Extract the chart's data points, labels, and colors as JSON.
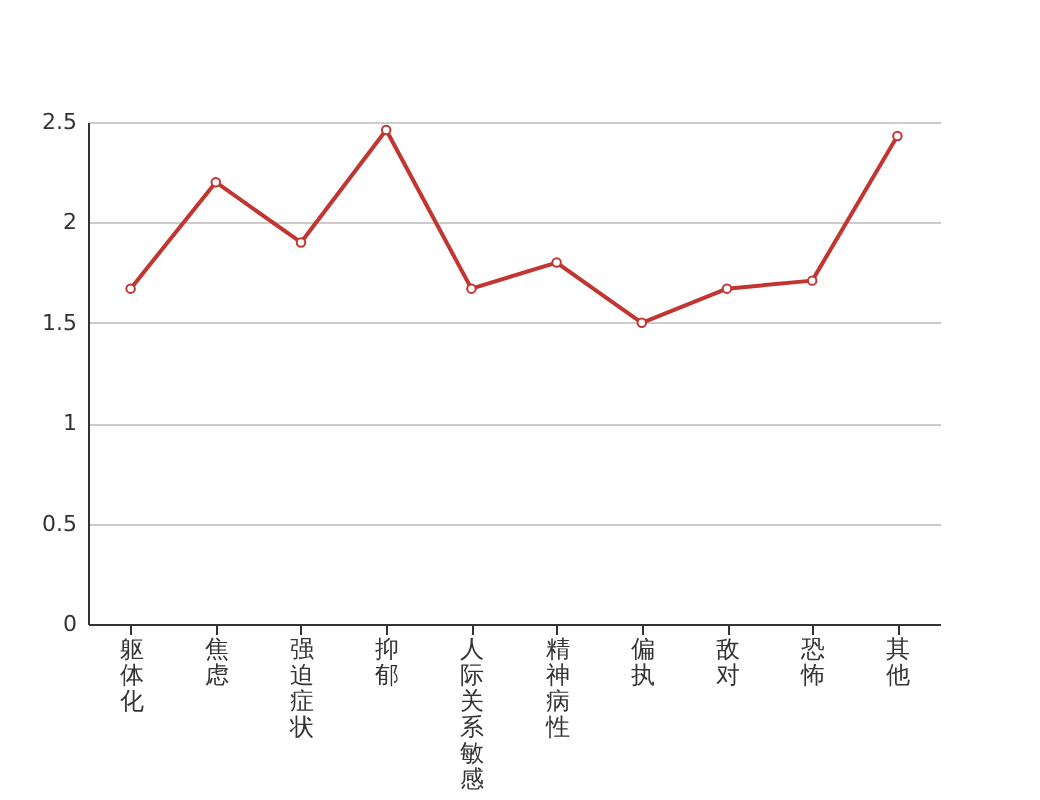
{
  "chart_data": {
    "type": "line",
    "categories": [
      "躯体化",
      "焦虑",
      "强迫症状",
      "抑郁",
      "人际关系敏感",
      "精神病性",
      "偏执",
      "敌对",
      "恐怖",
      "其他"
    ],
    "series": [
      {
        "color": "#c23531",
        "values": [
          1.67,
          2.2,
          1.9,
          2.46,
          1.67,
          1.8,
          1.5,
          1.67,
          1.71,
          2.43
        ]
      }
    ],
    "ylim": [
      0,
      2.5
    ],
    "yticks": [
      0,
      0.5,
      1,
      1.5,
      2,
      2.5
    ],
    "grid": "y",
    "marker": "circle",
    "line_style": "solid"
  }
}
